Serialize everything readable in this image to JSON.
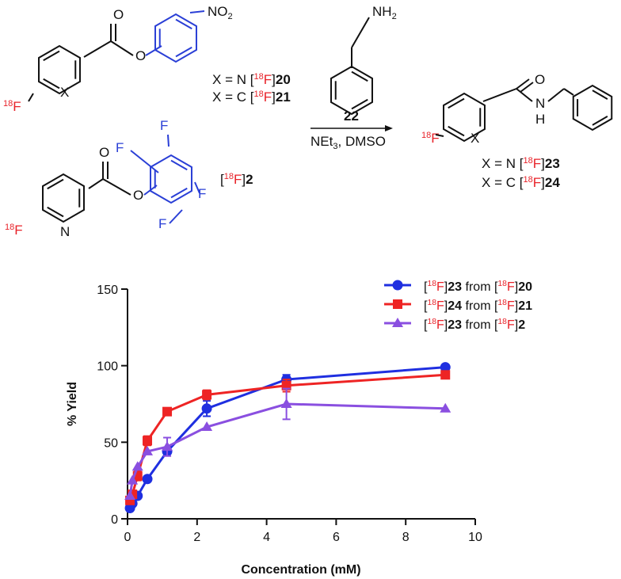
{
  "scheme": {
    "labels": [
      "NO2",
      "O",
      "O",
      "18F",
      "X",
      "X = N [18F]20",
      "X = C [18F]21",
      "O",
      "O",
      "F",
      "F",
      "F",
      "F",
      "N",
      "18F",
      "[18F]2",
      "NH2",
      "22",
      "NEt3, DMSO",
      "O",
      "N",
      "H",
      "18F",
      "X",
      "X = N [18F]23",
      "X = C [18F]24"
    ]
  },
  "chart_data": {
    "type": "line",
    "x_label": "Concentration (mM)",
    "y_label": "% Yield",
    "x": [
      0.07,
      0.14,
      0.29,
      0.57,
      1.14,
      2.28,
      4.57,
      9.14
    ],
    "series": [
      {
        "name": "[18F]23 from [18F]20",
        "color": "#1f2fe0",
        "marker": "circle",
        "values": [
          7,
          10,
          15,
          26,
          44,
          72,
          91,
          99
        ],
        "errors": [
          null,
          null,
          null,
          null,
          null,
          5,
          3,
          null
        ]
      },
      {
        "name": "[18F]24 from [18F]21",
        "color": "#ee2424",
        "marker": "square",
        "values": [
          12,
          16,
          28,
          51,
          70,
          81,
          87,
          94
        ],
        "errors": [
          null,
          null,
          3,
          3,
          null,
          3,
          4,
          null
        ]
      },
      {
        "name": "[18F]23 from [18F]2",
        "color": "#8a4fe0",
        "marker": "triangle",
        "values": [
          15,
          25,
          34,
          44,
          47,
          60,
          75,
          72
        ],
        "errors": [
          null,
          null,
          null,
          null,
          6,
          null,
          10,
          null
        ]
      }
    ],
    "xlim": [
      0,
      10
    ],
    "xticks": [
      0,
      2,
      4,
      6,
      8,
      10
    ],
    "ylim": [
      0,
      150
    ],
    "yticks": [
      0,
      50,
      100,
      150
    ],
    "legend": "top-right"
  }
}
